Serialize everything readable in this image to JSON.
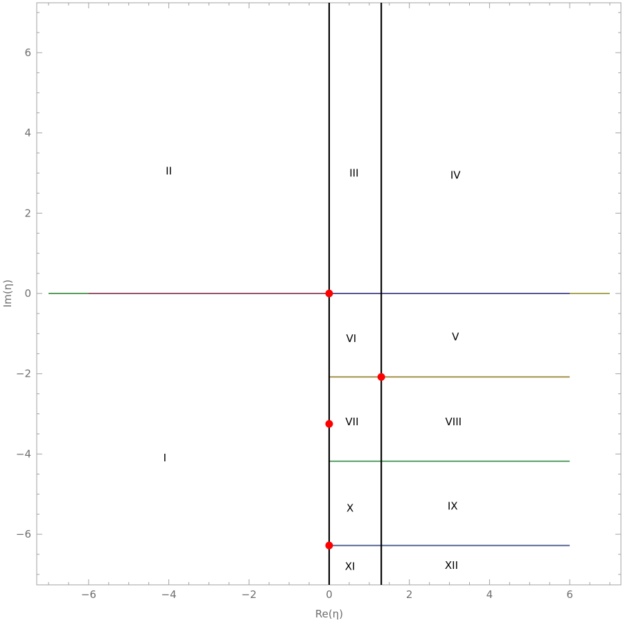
{
  "axes": {
    "x_label": "Re(η)",
    "y_label": "Im(η)",
    "xlim": [
      -7.3,
      7.3
    ],
    "ylim": [
      -7.3,
      7.3
    ],
    "x_ticks": [
      -6,
      -4,
      -2,
      0,
      2,
      4,
      6
    ],
    "y_ticks": [
      -6,
      -4,
      -2,
      0,
      2,
      4,
      6
    ],
    "x_tick_labels": [
      "−6",
      "−4",
      "−2",
      "0",
      "2",
      "4",
      "6"
    ],
    "y_tick_labels": [
      "−6",
      "−4",
      "−2",
      "0",
      "2",
      "4",
      "6"
    ],
    "minor_step": 0.5
  },
  "vertical_lines": [
    {
      "x": 0,
      "color": "#000000"
    },
    {
      "x": 1.3,
      "color": "#000000"
    }
  ],
  "horizontal_segments": [
    {
      "y": 0,
      "x_from": -7,
      "x_to": 7,
      "color": "#9c9a3c"
    },
    {
      "y": 0,
      "x_from": -7,
      "x_to": 0,
      "color": "#4a9a5a"
    },
    {
      "y": 0,
      "x_from": -6,
      "x_to": 0,
      "color": "#a04a6a"
    },
    {
      "y": 0,
      "x_from": 0,
      "x_to": 6,
      "color": "#4a4a9c"
    },
    {
      "y": -2.08,
      "x_from": 0,
      "x_to": 6,
      "color": "#9c8a3c"
    },
    {
      "y": -4.18,
      "x_from": 0,
      "x_to": 6,
      "color": "#4a9a5a"
    },
    {
      "y": -6.28,
      "x_from": 0,
      "x_to": 6,
      "color": "#4a5a8c"
    }
  ],
  "points": [
    {
      "x": 0,
      "y": 0,
      "color": "#ff0000"
    },
    {
      "x": 1.3,
      "y": -2.08,
      "color": "#ff0000"
    },
    {
      "x": 0,
      "y": -3.25,
      "color": "#ff0000"
    },
    {
      "x": 0,
      "y": -6.28,
      "color": "#ff0000"
    }
  ],
  "regions": [
    {
      "label": "I",
      "x": -4.1,
      "y": -4.1
    },
    {
      "label": "II",
      "x": -4.0,
      "y": 3.05
    },
    {
      "label": "III",
      "x": 0.62,
      "y": 3.0
    },
    {
      "label": "IV",
      "x": 3.15,
      "y": 2.95
    },
    {
      "label": "V",
      "x": 3.15,
      "y": -1.08
    },
    {
      "label": "VI",
      "x": 0.55,
      "y": -1.12
    },
    {
      "label": "VII",
      "x": 0.57,
      "y": -3.2
    },
    {
      "label": "VIII",
      "x": 3.1,
      "y": -3.2
    },
    {
      "label": "IX",
      "x": 3.08,
      "y": -5.3
    },
    {
      "label": "X",
      "x": 0.52,
      "y": -5.35
    },
    {
      "label": "XI",
      "x": 0.52,
      "y": -6.8
    },
    {
      "label": "XII",
      "x": 3.05,
      "y": -6.78
    }
  ]
}
